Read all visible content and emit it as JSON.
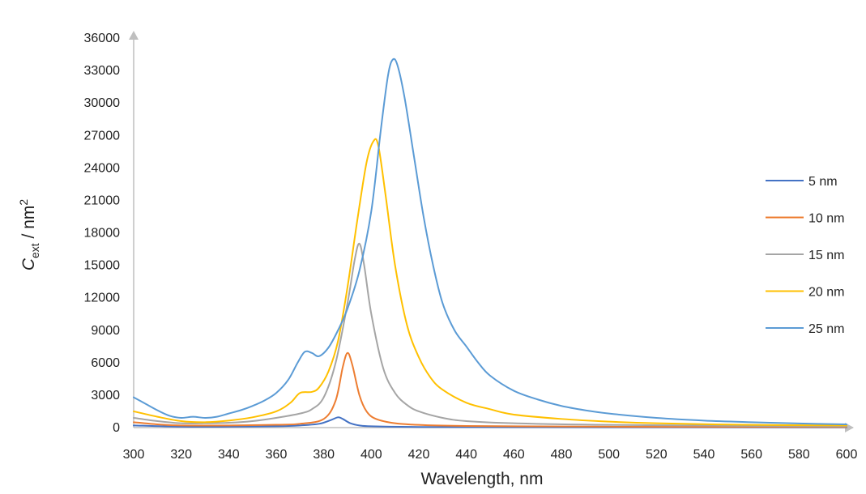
{
  "chart_data": {
    "type": "line",
    "title": "",
    "xlabel": "Wavelength, nm",
    "ylabel": {
      "main": "C",
      "sub": "ext",
      "unit": " / nm",
      "sup": "2"
    },
    "xlim": [
      300,
      600
    ],
    "ylim": [
      0,
      36000
    ],
    "xticks": [
      300,
      320,
      340,
      360,
      380,
      400,
      420,
      440,
      460,
      480,
      500,
      520,
      540,
      560,
      580,
      600
    ],
    "yticks": [
      0,
      3000,
      6000,
      9000,
      12000,
      15000,
      18000,
      21000,
      24000,
      27000,
      30000,
      33000,
      36000
    ],
    "grid": false,
    "legend_position": "right",
    "series": [
      {
        "name": "5 nm",
        "color": "#4472C4",
        "points": [
          [
            300,
            200
          ],
          [
            320,
            80
          ],
          [
            340,
            80
          ],
          [
            360,
            120
          ],
          [
            370,
            200
          ],
          [
            378,
            350
          ],
          [
            383,
            700
          ],
          [
            386,
            950
          ],
          [
            388,
            800
          ],
          [
            391,
            420
          ],
          [
            395,
            200
          ],
          [
            400,
            120
          ],
          [
            420,
            60
          ],
          [
            460,
            40
          ],
          [
            500,
            30
          ],
          [
            600,
            20
          ]
        ]
      },
      {
        "name": "10 nm",
        "color": "#ED7D31",
        "points": [
          [
            300,
            500
          ],
          [
            310,
            300
          ],
          [
            320,
            200
          ],
          [
            340,
            200
          ],
          [
            360,
            260
          ],
          [
            370,
            350
          ],
          [
            380,
            800
          ],
          [
            385,
            2500
          ],
          [
            388,
            5600
          ],
          [
            390,
            6900
          ],
          [
            392,
            5800
          ],
          [
            395,
            3000
          ],
          [
            398,
            1500
          ],
          [
            402,
            800
          ],
          [
            410,
            400
          ],
          [
            420,
            250
          ],
          [
            440,
            150
          ],
          [
            500,
            80
          ],
          [
            600,
            50
          ]
        ]
      },
      {
        "name": "15 nm",
        "color": "#A5A5A5",
        "points": [
          [
            300,
            900
          ],
          [
            310,
            600
          ],
          [
            320,
            400
          ],
          [
            330,
            400
          ],
          [
            340,
            450
          ],
          [
            350,
            600
          ],
          [
            360,
            900
          ],
          [
            370,
            1300
          ],
          [
            375,
            1700
          ],
          [
            380,
            2800
          ],
          [
            385,
            6000
          ],
          [
            390,
            11500
          ],
          [
            393,
            15500
          ],
          [
            395,
            17000
          ],
          [
            397,
            15000
          ],
          [
            400,
            10500
          ],
          [
            405,
            5500
          ],
          [
            410,
            3200
          ],
          [
            415,
            2100
          ],
          [
            420,
            1500
          ],
          [
            430,
            900
          ],
          [
            440,
            600
          ],
          [
            460,
            400
          ],
          [
            500,
            250
          ],
          [
            600,
            100
          ]
        ]
      },
      {
        "name": "20 nm",
        "color": "#FFC000",
        "points": [
          [
            300,
            1500
          ],
          [
            310,
            1000
          ],
          [
            320,
            600
          ],
          [
            330,
            500
          ],
          [
            340,
            650
          ],
          [
            350,
            950
          ],
          [
            360,
            1500
          ],
          [
            366,
            2300
          ],
          [
            370,
            3200
          ],
          [
            375,
            3300
          ],
          [
            378,
            3700
          ],
          [
            382,
            5200
          ],
          [
            386,
            8000
          ],
          [
            390,
            13000
          ],
          [
            394,
            19000
          ],
          [
            398,
            24500
          ],
          [
            401,
            26500
          ],
          [
            403,
            26000
          ],
          [
            406,
            21500
          ],
          [
            410,
            15000
          ],
          [
            415,
            9500
          ],
          [
            420,
            6500
          ],
          [
            425,
            4600
          ],
          [
            430,
            3500
          ],
          [
            440,
            2300
          ],
          [
            450,
            1700
          ],
          [
            460,
            1200
          ],
          [
            480,
            800
          ],
          [
            500,
            550
          ],
          [
            520,
            400
          ],
          [
            560,
            250
          ],
          [
            600,
            200
          ]
        ]
      },
      {
        "name": "25 nm",
        "color": "#5B9BD5",
        "points": [
          [
            300,
            2800
          ],
          [
            305,
            2200
          ],
          [
            310,
            1600
          ],
          [
            315,
            1100
          ],
          [
            320,
            900
          ],
          [
            325,
            1000
          ],
          [
            330,
            900
          ],
          [
            335,
            1000
          ],
          [
            340,
            1300
          ],
          [
            345,
            1600
          ],
          [
            350,
            2000
          ],
          [
            355,
            2500
          ],
          [
            360,
            3200
          ],
          [
            365,
            4400
          ],
          [
            369,
            6000
          ],
          [
            372,
            7000
          ],
          [
            375,
            6900
          ],
          [
            378,
            6600
          ],
          [
            382,
            7400
          ],
          [
            386,
            9000
          ],
          [
            390,
            11000
          ],
          [
            395,
            14500
          ],
          [
            400,
            20000
          ],
          [
            404,
            27500
          ],
          [
            407,
            32500
          ],
          [
            409,
            34000
          ],
          [
            411,
            33500
          ],
          [
            414,
            30500
          ],
          [
            418,
            25000
          ],
          [
            422,
            19500
          ],
          [
            426,
            15000
          ],
          [
            430,
            11500
          ],
          [
            435,
            9000
          ],
          [
            440,
            7500
          ],
          [
            445,
            6000
          ],
          [
            450,
            4800
          ],
          [
            460,
            3400
          ],
          [
            470,
            2600
          ],
          [
            480,
            2000
          ],
          [
            490,
            1600
          ],
          [
            500,
            1300
          ],
          [
            520,
            900
          ],
          [
            540,
            650
          ],
          [
            560,
            500
          ],
          [
            580,
            380
          ],
          [
            600,
            300
          ]
        ]
      }
    ]
  }
}
